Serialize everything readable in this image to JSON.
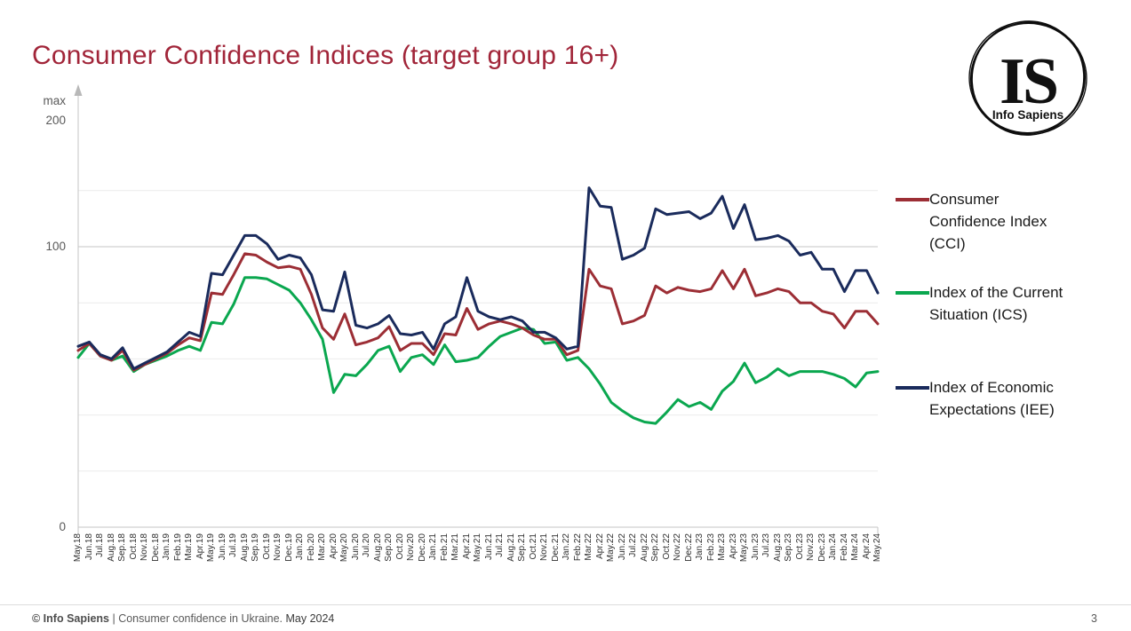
{
  "title": "Consumer Confidence Indices (target group 16+)",
  "logo": {
    "initials": "IS",
    "name": "Info Sapiens"
  },
  "y_axis": {
    "max_label": "max",
    "top_value": "200",
    "mid_value": "100",
    "zero_value": "0"
  },
  "legend": {
    "items": [
      {
        "id": "cci",
        "label": "Consumer\nConfidence Index\n(CCI)",
        "color": "#9C2E35"
      },
      {
        "id": "ics",
        "label": "Index of the Current\nSituation (ICS)",
        "color": "#0AA74F"
      },
      {
        "id": "iee",
        "label": "Index of Economic\nExpectations (IEE)",
        "color": "#1A2B5C"
      }
    ]
  },
  "footer": {
    "copyright": "© Info Sapiens",
    "middle": " | Consumer confidence in Ukraine. ",
    "date": "May 2024",
    "page": "3"
  },
  "chart_data": {
    "type": "line",
    "title": "Consumer Confidence Indices (target group 16+)",
    "xlabel": "",
    "ylabel": "",
    "ylim": [
      0,
      200
    ],
    "grid": true,
    "y_gridlines_light": [
      20,
      40,
      60,
      80,
      120
    ],
    "y_gridline_major": 100,
    "legend_position": "right",
    "x_tick_rotation": 90,
    "categories": [
      "May.18",
      "Jun.18",
      "Jul.18",
      "Aug.18",
      "Sep.18",
      "Oct.18",
      "Nov.18",
      "Dec.18",
      "Jan.19",
      "Feb.19",
      "Mar.19",
      "Apr.19",
      "May.19",
      "Jun.19",
      "Jul.19",
      "Aug.19",
      "Sep.19",
      "Oct.19",
      "Nov.19",
      "Dec.19",
      "Jan.20",
      "Feb.20",
      "Mar.20",
      "Apr.20",
      "May.20",
      "Jun.20",
      "Jul.20",
      "Aug.20",
      "Sep.20",
      "Oct.20",
      "Nov.20",
      "Dec.20",
      "Jan.21",
      "Feb.21",
      "Mar.21",
      "Apr.21",
      "May.21",
      "Jun.21",
      "Jul.21",
      "Aug.21",
      "Sep.21",
      "Oct.21",
      "Nov.21",
      "Dec.21",
      "Jan.22",
      "Feb.22",
      "Mar.22",
      "Apr.22",
      "May.22",
      "Jun.22",
      "Jul.22",
      "Aug.22",
      "Sep.22",
      "Oct.22",
      "Nov.22",
      "Dec.22",
      "Jan.23",
      "Feb.23",
      "Mar.23",
      "Apr.23",
      "May.23",
      "Jun.23",
      "Jul.23",
      "Aug.23",
      "Sep.23",
      "Oct.23",
      "Nov.23",
      "Dec.23",
      "Jan.24",
      "Feb.24",
      "Mar.24",
      "Apr.24",
      "May.24"
    ],
    "series": [
      {
        "name": "Consumer Confidence Index (CCI)",
        "short": "cci",
        "color": "#9C2E35",
        "z": 2,
        "values": [
          63,
          65.5,
          61,
          59.5,
          63,
          56,
          58,
          60,
          62,
          65,
          67.5,
          66.5,
          83.5,
          83,
          90,
          97.5,
          97,
          94.5,
          92.5,
          93,
          92,
          83,
          71,
          67,
          76,
          65,
          66,
          67.5,
          71.5,
          63,
          65.5,
          65.5,
          61.5,
          69,
          68.5,
          78,
          70.5,
          72.5,
          73.5,
          72.5,
          71,
          68.5,
          67,
          67,
          61.5,
          63,
          92,
          86,
          85,
          72.5,
          73.5,
          75.5,
          86,
          83.5,
          85.5,
          84.5,
          84,
          85,
          91.5,
          85,
          92,
          82.5,
          83.5,
          85,
          84,
          80,
          80,
          77,
          76,
          71,
          77,
          77,
          72.5
        ]
      },
      {
        "name": "Index of the Current Situation (ICS)",
        "short": "ics",
        "color": "#0AA74F",
        "z": 1,
        "values": [
          60.5,
          65.5,
          61,
          59.5,
          61,
          55.5,
          58,
          59.5,
          61,
          63,
          64.5,
          63,
          73,
          72.5,
          79.5,
          89,
          89,
          88.5,
          86.5,
          84.5,
          80,
          74,
          67,
          48,
          54.5,
          54,
          58,
          63,
          64.5,
          55.5,
          60.5,
          61.5,
          58,
          65,
          59,
          59.5,
          60.5,
          64.5,
          68,
          69.5,
          71,
          70.5,
          65.5,
          66,
          59.5,
          60.5,
          56.5,
          51,
          44.5,
          41.5,
          39,
          37.5,
          37,
          41,
          45.5,
          43,
          44.5,
          42,
          48.5,
          52,
          58.5,
          51.5,
          53.5,
          56.5,
          54,
          55.5,
          55.5,
          55.5,
          54.5,
          53,
          50,
          55,
          55.5
        ]
      },
      {
        "name": "Index of Economic Expectations (IEE)",
        "short": "iee",
        "color": "#1A2B5C",
        "z": 3,
        "values": [
          64.5,
          66,
          61.5,
          60,
          64,
          56.5,
          58.5,
          60.5,
          62.5,
          66,
          69.5,
          68,
          90.5,
          90,
          97,
          104,
          104,
          101,
          95.5,
          97,
          96,
          90,
          77.5,
          77,
          91,
          72,
          71,
          72.5,
          75.5,
          69,
          68.5,
          69.5,
          63.5,
          72.5,
          75,
          89,
          77,
          75,
          74,
          75,
          73.5,
          69.5,
          69.5,
          67.5,
          63.5,
          64.5,
          121,
          114.5,
          114,
          95.5,
          97,
          99.5,
          113.5,
          111.5,
          112,
          112.5,
          110,
          112,
          118,
          106.5,
          115,
          102.5,
          103,
          104,
          102,
          97,
          98,
          92,
          92,
          84,
          91.5,
          91.5,
          83.5
        ]
      }
    ]
  }
}
